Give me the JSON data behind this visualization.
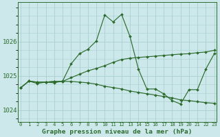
{
  "xlabel": "Graphe pression niveau de la mer (hPa)",
  "x_ticks": [
    0,
    1,
    2,
    3,
    4,
    5,
    6,
    7,
    8,
    9,
    10,
    11,
    12,
    13,
    14,
    15,
    16,
    17,
    18,
    19,
    20,
    21,
    22,
    23
  ],
  "ylim": [
    1023.65,
    1027.15
  ],
  "yticks": [
    1024,
    1025,
    1026
  ],
  "background_color": "#cce8ea",
  "grid_color": "#aacfcf",
  "line_color": "#2d6b2d",
  "series": {
    "line1": [
      1024.65,
      1024.85,
      1024.78,
      1024.82,
      1024.8,
      1024.85,
      1025.35,
      1025.65,
      1025.78,
      1026.02,
      1026.78,
      1026.58,
      1026.8,
      1026.15,
      1025.2,
      1024.62,
      1024.62,
      1024.48,
      1024.28,
      1024.18,
      1024.6,
      1024.6,
      1025.2,
      1025.65
    ],
    "line2": [
      1024.65,
      1024.85,
      1024.82,
      1024.82,
      1024.84,
      1024.84,
      1024.95,
      1025.05,
      1025.15,
      1025.22,
      1025.3,
      1025.4,
      1025.48,
      1025.52,
      1025.54,
      1025.56,
      1025.58,
      1025.6,
      1025.62,
      1025.64,
      1025.65,
      1025.68,
      1025.7,
      1025.75
    ],
    "line3": [
      1024.65,
      1024.85,
      1024.82,
      1024.82,
      1024.84,
      1024.84,
      1024.84,
      1024.82,
      1024.8,
      1024.76,
      1024.7,
      1024.66,
      1024.62,
      1024.56,
      1024.52,
      1024.48,
      1024.44,
      1024.4,
      1024.36,
      1024.3,
      1024.28,
      1024.25,
      1024.22,
      1024.2
    ]
  }
}
